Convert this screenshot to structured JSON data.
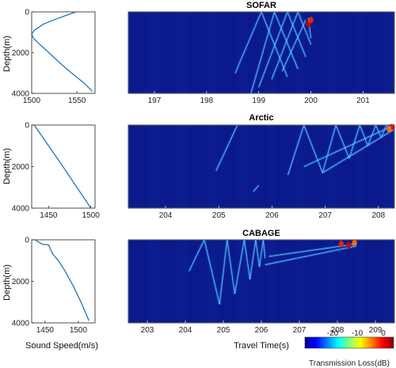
{
  "colors": {
    "panel_bg": "#0a1a8c",
    "profile_line": "#1f77b4"
  },
  "shared": {
    "depth_label": "Depth(m)",
    "speed_label": "Sound Speed(m/s)",
    "time_label": "Travel Time(s)",
    "colorbar": {
      "label": "Transmission Loss(dB)",
      "ticks": [
        "-20",
        "-10",
        "0"
      ],
      "range": [
        -25,
        0
      ],
      "colormap": "jet"
    }
  },
  "chart_data": [
    {
      "type": "line",
      "title": "",
      "xlabel": "",
      "ylabel": "Depth(m)",
      "xlim": [
        1500,
        1570
      ],
      "ylim": [
        4000,
        0
      ],
      "xticks": [
        "1500",
        "1550"
      ],
      "yticks": [
        "0",
        "2000",
        "4000"
      ],
      "series": [
        {
          "x": [
            1549,
            1530,
            1513,
            1503,
            1500,
            1502,
            1509,
            1519,
            1531,
            1544,
            1558,
            1567
          ],
          "y": [
            0,
            300,
            600,
            900,
            1100,
            1300,
            1600,
            2000,
            2500,
            3000,
            3500,
            3900
          ]
        }
      ]
    },
    {
      "type": "heatmap",
      "title": "SOFAR",
      "xlabel": "",
      "ylabel": "",
      "xlim": [
        196.5,
        201.6
      ],
      "ylim": [
        4000,
        0
      ],
      "xticks": [
        "197",
        "198",
        "199",
        "200",
        "201"
      ],
      "arrivals": [
        [
          [
            198.55,
            3000
          ],
          [
            199.05,
            0
          ]
        ],
        [
          [
            198.85,
            4000
          ],
          [
            199.3,
            0
          ]
        ],
        [
          [
            199.0,
            3700
          ],
          [
            199.55,
            0
          ]
        ],
        [
          [
            199.25,
            3300
          ],
          [
            199.75,
            0
          ]
        ],
        [
          [
            199.45,
            2900
          ],
          [
            199.9,
            400
          ]
        ],
        [
          [
            199.05,
            0
          ],
          [
            199.55,
            3200
          ]
        ],
        [
          [
            199.3,
            0
          ],
          [
            199.75,
            2800
          ]
        ],
        [
          [
            199.55,
            0
          ],
          [
            199.9,
            2200
          ]
        ],
        [
          [
            199.75,
            0
          ],
          [
            200.0,
            1600
          ]
        ],
        [
          [
            199.95,
            300
          ],
          [
            200.0,
            1300
          ]
        ]
      ],
      "hotspots": [
        [
          199.95,
          600,
          -2
        ],
        [
          200.0,
          400,
          -4
        ]
      ]
    },
    {
      "type": "line",
      "title": "",
      "xlabel": "",
      "ylabel": "Depth(m)",
      "xlim": [
        1430,
        1505
      ],
      "ylim": [
        4000,
        0
      ],
      "xticks": [
        "1450",
        "1500"
      ],
      "yticks": [
        "0",
        "2000",
        "4000"
      ],
      "series": [
        {
          "x": [
            1433,
            1467,
            1500
          ],
          "y": [
            0,
            2000,
            4000
          ]
        }
      ]
    },
    {
      "type": "heatmap",
      "title": "Arctic",
      "xlabel": "",
      "ylabel": "",
      "xlim": [
        203.3,
        208.3
      ],
      "ylim": [
        4000,
        0
      ],
      "xticks": [
        "204",
        "205",
        "206",
        "207",
        "208"
      ],
      "arrivals": [
        [
          [
            204.95,
            2200
          ],
          [
            205.35,
            0
          ]
        ],
        [
          [
            205.65,
            3200
          ],
          [
            205.75,
            2900
          ]
        ],
        [
          [
            206.3,
            2400
          ],
          [
            206.6,
            0
          ]
        ],
        [
          [
            206.6,
            0
          ],
          [
            206.95,
            2300
          ]
        ],
        [
          [
            206.95,
            2300
          ],
          [
            207.2,
            0
          ]
        ],
        [
          [
            207.2,
            0
          ],
          [
            207.45,
            1600
          ]
        ],
        [
          [
            207.45,
            1600
          ],
          [
            207.65,
            0
          ]
        ],
        [
          [
            207.65,
            0
          ],
          [
            207.8,
            1000
          ]
        ],
        [
          [
            207.8,
            1000
          ],
          [
            207.95,
            0
          ]
        ],
        [
          [
            207.95,
            0
          ],
          [
            208.05,
            600
          ]
        ],
        [
          [
            208.05,
            600
          ],
          [
            208.15,
            0
          ]
        ],
        [
          [
            208.15,
            0
          ],
          [
            208.25,
            300
          ]
        ],
        [
          [
            206.6,
            2000
          ],
          [
            208.3,
            0
          ]
        ],
        [
          [
            206.95,
            2300
          ],
          [
            208.3,
            200
          ]
        ]
      ],
      "hotspots": [
        [
          208.25,
          100,
          -3
        ],
        [
          208.2,
          200,
          -6
        ]
      ]
    },
    {
      "type": "line",
      "title": "",
      "xlabel": "Sound Speed(m/s)",
      "ylabel": "Depth(m)",
      "xlim": [
        1430,
        1525
      ],
      "ylim": [
        4000,
        0
      ],
      "xticks": [
        "1450",
        "1500"
      ],
      "yticks": [
        "0",
        "2000",
        "4000"
      ],
      "series": [
        {
          "x": [
            1435,
            1440,
            1445,
            1450,
            1455,
            1457,
            1458,
            1462,
            1470,
            1480,
            1492,
            1504,
            1516
          ],
          "y": [
            0,
            100,
            200,
            230,
            240,
            350,
            450,
            700,
            1000,
            1500,
            2200,
            3000,
            3900
          ]
        }
      ]
    },
    {
      "type": "heatmap",
      "title": "CABAGE",
      "xlabel": "Travel Time(s)",
      "ylabel": "",
      "xlim": [
        202.5,
        209.5
      ],
      "ylim": [
        4000,
        0
      ],
      "xticks": [
        "203",
        "204",
        "205",
        "206",
        "207",
        "208",
        "209"
      ],
      "arrivals": [
        [
          [
            204.1,
            1500
          ],
          [
            204.5,
            0
          ]
        ],
        [
          [
            204.5,
            0
          ],
          [
            204.9,
            3100
          ]
        ],
        [
          [
            204.9,
            3100
          ],
          [
            205.1,
            0
          ]
        ],
        [
          [
            205.1,
            0
          ],
          [
            205.3,
            2600
          ]
        ],
        [
          [
            205.3,
            2600
          ],
          [
            205.55,
            0
          ]
        ],
        [
          [
            205.55,
            0
          ],
          [
            205.7,
            1900
          ]
        ],
        [
          [
            205.7,
            1900
          ],
          [
            205.85,
            0
          ]
        ],
        [
          [
            205.85,
            0
          ],
          [
            205.95,
            1300
          ]
        ],
        [
          [
            205.95,
            1300
          ],
          [
            206.05,
            0
          ]
        ],
        [
          [
            206.05,
            0
          ],
          [
            206.1,
            900
          ]
        ],
        [
          [
            206.1,
            1200
          ],
          [
            208.5,
            300
          ]
        ],
        [
          [
            206.2,
            800
          ],
          [
            208.5,
            200
          ]
        ]
      ],
      "hotspots": [
        [
          208.1,
          200,
          -4
        ],
        [
          208.3,
          250,
          -2
        ],
        [
          208.45,
          150,
          -6
        ]
      ]
    }
  ]
}
